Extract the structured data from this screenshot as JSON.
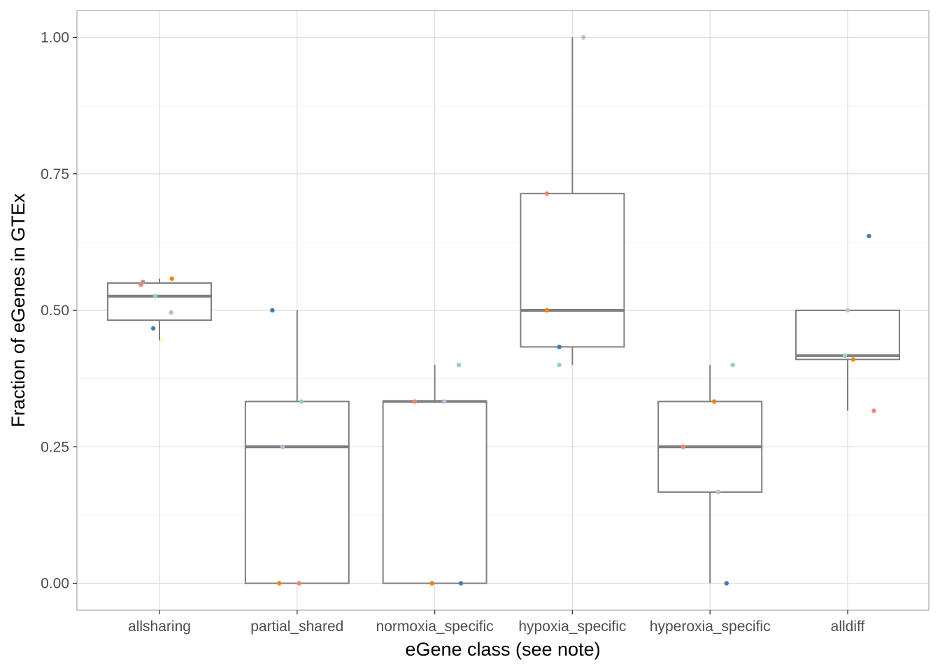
{
  "chart_data": {
    "type": "box",
    "xlabel": "eGene class (see note)",
    "ylabel": "Fraction of eGenes in GTEx",
    "ylim": [
      -0.05,
      1.05
    ],
    "yticks": [
      0.0,
      0.25,
      0.5,
      0.75,
      1.0
    ],
    "ytick_labels": [
      "0.00",
      "0.25",
      "0.50",
      "0.75",
      "1.00"
    ],
    "grid": true,
    "legend": "none",
    "box_color": "#7f7f7f",
    "categories": [
      "allsharing",
      "partial_shared",
      "normoxia_specific",
      "hypoxia_specific",
      "hyperoxia_specific",
      "alldiff"
    ],
    "boxes": [
      {
        "category": "allsharing",
        "whisker_low": 0.445,
        "q1": 0.482,
        "median": 0.526,
        "q3": 0.55,
        "whisker_high": 0.558
      },
      {
        "category": "partial_shared",
        "whisker_low": 0.0,
        "q1": 0.0,
        "median": 0.25,
        "q3": 0.333,
        "whisker_high": 0.5
      },
      {
        "category": "normoxia_specific",
        "whisker_low": 0.0,
        "q1": 0.0,
        "median": 0.333,
        "q3": 0.333,
        "whisker_high": 0.4
      },
      {
        "category": "hypoxia_specific",
        "whisker_low": 0.4,
        "q1": 0.433,
        "median": 0.5,
        "q3": 0.714,
        "whisker_high": 1.0
      },
      {
        "category": "hyperoxia_specific",
        "whisker_low": 0.0,
        "q1": 0.167,
        "median": 0.25,
        "q3": 0.333,
        "whisker_high": 0.4
      },
      {
        "category": "alldiff",
        "whisker_low": 0.316,
        "q1": 0.41,
        "median": 0.417,
        "q3": 0.5,
        "whisker_high": 0.5
      }
    ],
    "points": [
      {
        "category": "allsharing",
        "jitter": -0.12,
        "y": 0.552,
        "color": "#a0a0a0"
      },
      {
        "category": "allsharing",
        "jitter": -0.135,
        "y": 0.547,
        "color": "#fb8072"
      },
      {
        "category": "allsharing",
        "jitter": 0.09,
        "y": 0.558,
        "color": "#ff7f00"
      },
      {
        "category": "allsharing",
        "jitter": -0.03,
        "y": 0.526,
        "color": "#8dd3c7"
      },
      {
        "category": "allsharing",
        "jitter": 0.085,
        "y": 0.496,
        "color": "#bebada"
      },
      {
        "category": "allsharing",
        "jitter": -0.045,
        "y": 0.467,
        "color": "#377eb8"
      },
      {
        "category": "allsharing",
        "jitter": 0.02,
        "y": 0.445,
        "color": "#ffffb3"
      },
      {
        "category": "partial_shared",
        "jitter": -0.18,
        "y": 0.5,
        "color": "#377eb8"
      },
      {
        "category": "partial_shared",
        "jitter": 0.03,
        "y": 0.333,
        "color": "#8dd3c7"
      },
      {
        "category": "partial_shared",
        "jitter": -0.105,
        "y": 0.25,
        "color": "#bebada"
      },
      {
        "category": "partial_shared",
        "jitter": -0.13,
        "y": 0.0,
        "color": "#ff7f00"
      },
      {
        "category": "partial_shared",
        "jitter": 0.015,
        "y": 0.0,
        "color": "#fb8072"
      },
      {
        "category": "normoxia_specific",
        "jitter": 0.175,
        "y": 0.4,
        "color": "#8dd3c7"
      },
      {
        "category": "normoxia_specific",
        "jitter": -0.145,
        "y": 0.333,
        "color": "#fb8072"
      },
      {
        "category": "normoxia_specific",
        "jitter": 0.07,
        "y": 0.333,
        "color": "#bebada"
      },
      {
        "category": "normoxia_specific",
        "jitter": -0.02,
        "y": 0.0,
        "color": "#ff7f00"
      },
      {
        "category": "normoxia_specific",
        "jitter": 0.19,
        "y": 0.0,
        "color": "#377eb8"
      },
      {
        "category": "hypoxia_specific",
        "jitter": 0.08,
        "y": 1.0,
        "color": "#bebada"
      },
      {
        "category": "hypoxia_specific",
        "jitter": -0.185,
        "y": 0.714,
        "color": "#fb8072"
      },
      {
        "category": "hypoxia_specific",
        "jitter": -0.185,
        "y": 0.5,
        "color": "#ff7f00"
      },
      {
        "category": "hypoxia_specific",
        "jitter": -0.095,
        "y": 0.433,
        "color": "#377eb8"
      },
      {
        "category": "hypoxia_specific",
        "jitter": -0.095,
        "y": 0.4,
        "color": "#8dd3c7"
      },
      {
        "category": "hyperoxia_specific",
        "jitter": 0.165,
        "y": 0.4,
        "color": "#8dd3c7"
      },
      {
        "category": "hyperoxia_specific",
        "jitter": 0.03,
        "y": 0.333,
        "color": "#ff7f00"
      },
      {
        "category": "hyperoxia_specific",
        "jitter": -0.195,
        "y": 0.25,
        "color": "#fb8072"
      },
      {
        "category": "hyperoxia_specific",
        "jitter": 0.06,
        "y": 0.167,
        "color": "#bebada"
      },
      {
        "category": "hyperoxia_specific",
        "jitter": 0.12,
        "y": 0.0,
        "color": "#377eb8"
      },
      {
        "category": "alldiff",
        "jitter": 0.155,
        "y": 0.636,
        "color": "#377eb8"
      },
      {
        "category": "alldiff",
        "jitter": 0.0,
        "y": 0.5,
        "color": "#bebada"
      },
      {
        "category": "alldiff",
        "jitter": -0.02,
        "y": 0.417,
        "color": "#8dd3c7"
      },
      {
        "category": "alldiff",
        "jitter": 0.04,
        "y": 0.41,
        "color": "#ff7f00"
      },
      {
        "category": "alldiff",
        "jitter": 0.19,
        "y": 0.316,
        "color": "#fb8072"
      }
    ]
  }
}
